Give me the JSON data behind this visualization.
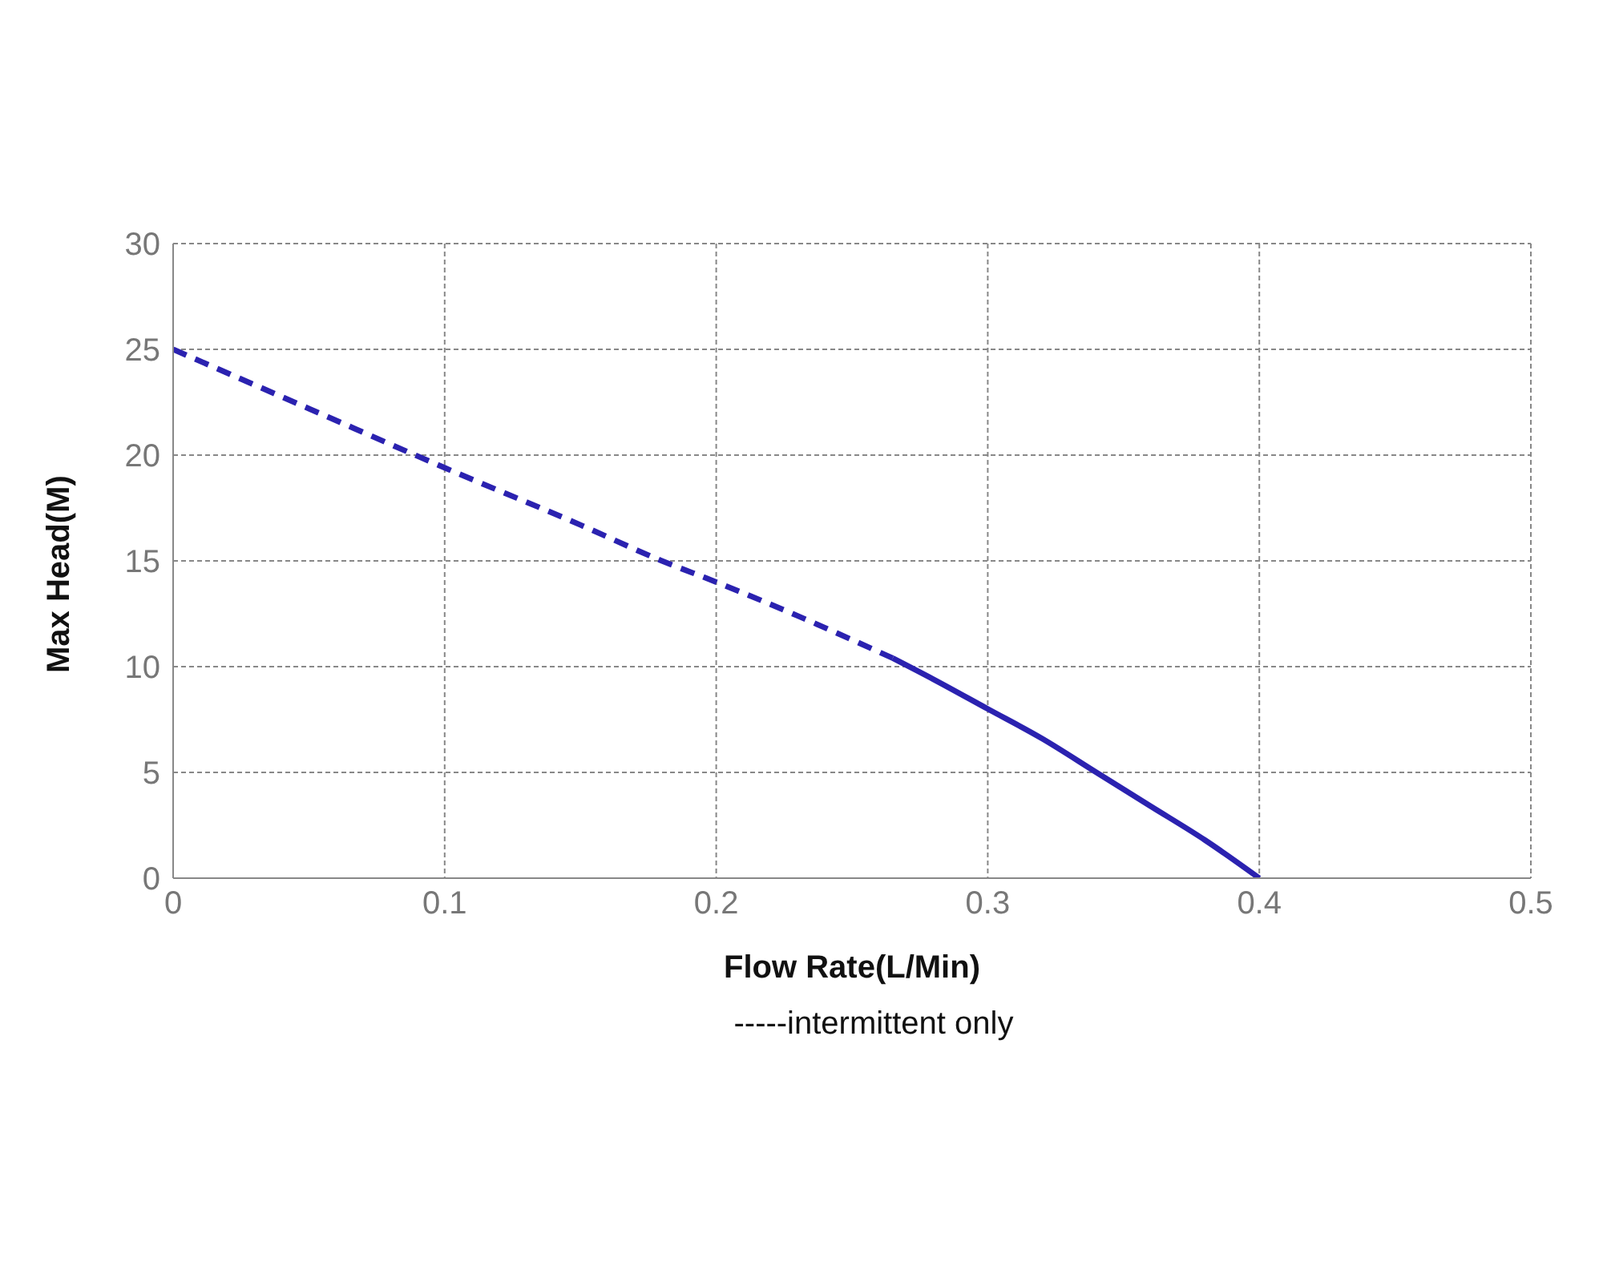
{
  "chart_data": {
    "type": "line",
    "xlabel": "Flow Rate(L/Min)",
    "ylabel": "Max Head(M)",
    "xlim": [
      0,
      0.5
    ],
    "xticks": [
      0,
      0.1,
      0.2,
      0.3,
      0.4,
      0.5
    ],
    "ylim": [
      0,
      30
    ],
    "yticks": [
      0,
      5,
      10,
      15,
      20,
      25,
      30
    ],
    "grid": true,
    "series": [
      {
        "color": "#2b22b0",
        "line_style": "dashed",
        "x": [
          0,
          0.05,
          0.1,
          0.15,
          0.18,
          0.2,
          0.23,
          0.265
        ],
        "values": [
          25,
          22.2,
          19.4,
          16.7,
          15,
          14,
          12.4,
          10.4
        ]
      },
      {
        "color": "#2b22b0",
        "line_style": "solid",
        "x": [
          0.265,
          0.28,
          0.3,
          0.32,
          0.34,
          0.36,
          0.38,
          0.4
        ],
        "values": [
          10.4,
          9.4,
          8,
          6.6,
          5,
          3.4,
          1.8,
          0
        ]
      }
    ],
    "annotations": [
      "-----intermittent only"
    ]
  }
}
